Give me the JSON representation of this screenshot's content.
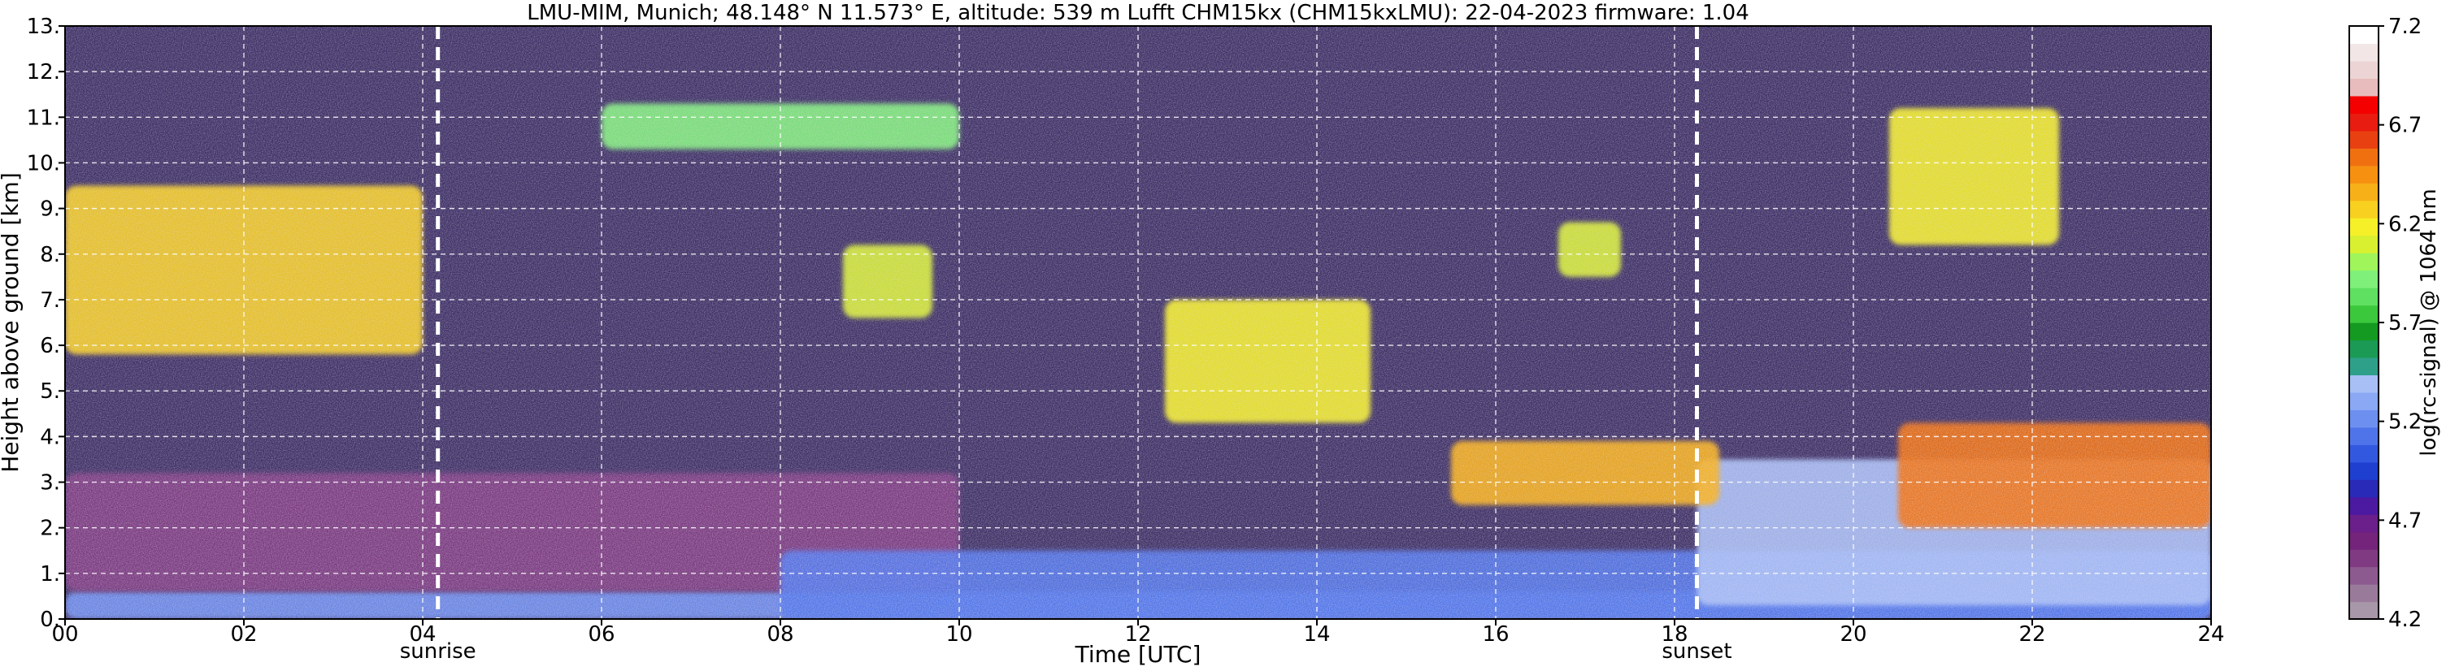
{
  "chart_data": {
    "type": "heatmap",
    "title": "LMU-MIM, Munich; 48.148° N 11.573° E, altitude: 539 m    Lufft CHM15kx (CHM15kxLMU): 22-04-2023    firmware: 1.04",
    "xlabel": "Time [UTC]",
    "ylabel": "Height above ground [km]",
    "xlim": [
      0,
      24
    ],
    "ylim": [
      0,
      13
    ],
    "x_ticks": [
      "00",
      "02",
      "04",
      "06",
      "08",
      "10",
      "12",
      "14",
      "16",
      "18",
      "20",
      "22",
      "24"
    ],
    "x_tick_values": [
      0,
      2,
      4,
      6,
      8,
      10,
      12,
      14,
      16,
      18,
      20,
      22,
      24
    ],
    "y_ticks": [
      "0.",
      "1.",
      "2.",
      "3.",
      "4.",
      "5.",
      "6.",
      "7.",
      "8.",
      "9.",
      "10.",
      "11.",
      "12.",
      "13."
    ],
    "y_tick_values": [
      0,
      1,
      2,
      3,
      4,
      5,
      6,
      7,
      8,
      9,
      10,
      11,
      12,
      13
    ],
    "grid": true,
    "annotations": [
      {
        "label": "sunrise",
        "x": 4.17
      },
      {
        "label": "sunset",
        "x": 18.25
      }
    ],
    "colorbar": {
      "label": "log(rc-signal) @ 1064 nm",
      "range": [
        4.2,
        7.2
      ],
      "ticks": [
        "4.2",
        "4.7",
        "5.2",
        "5.7",
        "6.2",
        "6.7",
        "7.2"
      ],
      "tick_values": [
        4.2,
        4.7,
        5.2,
        5.7,
        6.2,
        6.7,
        7.2
      ],
      "colors": [
        "#a897a8",
        "#9a7a9a",
        "#8c5a8e",
        "#7f3a82",
        "#74247a",
        "#6a1f8a",
        "#4b1aa0",
        "#2a2ab8",
        "#1f3fd0",
        "#3358e0",
        "#4f74ea",
        "#6d8ff0",
        "#8aa8f4",
        "#a8bff6",
        "#2ea08a",
        "#1a9a55",
        "#149a20",
        "#3cc83c",
        "#5fe060",
        "#7ff07a",
        "#9ff55a",
        "#d8f030",
        "#f5f028",
        "#f8d020",
        "#f8b018",
        "#f59010",
        "#f07010",
        "#e84010",
        "#e81c10",
        "#f50000",
        "#e8bcbc",
        "#ecd4d4",
        "#f2e6e6",
        "#ffffff"
      ]
    },
    "layers": [
      {
        "name": "ground-layer",
        "x": [
          0,
          24
        ],
        "y": [
          0,
          0.6
        ],
        "level": 5.2
      },
      {
        "name": "residual-layer",
        "x": [
          0,
          10
        ],
        "y": [
          0.6,
          3.2
        ],
        "level": 4.5
      },
      {
        "name": "boundary-layer-afternoon",
        "x": [
          8,
          24
        ],
        "y": [
          0,
          1.5
        ],
        "level": 5.1
      },
      {
        "name": "evening-boundary-layer",
        "x": [
          18.25,
          24
        ],
        "y": [
          0.3,
          3.5
        ],
        "level": 5.4
      },
      {
        "name": "cloud-night",
        "x": [
          0,
          4
        ],
        "y": [
          5.8,
          9.5
        ],
        "level": 6.3
      },
      {
        "name": "cirrus-1",
        "x": [
          6,
          10
        ],
        "y": [
          10.3,
          11.3
        ],
        "level": 5.9
      },
      {
        "name": "cirrus-2",
        "x": [
          8.7,
          9.7
        ],
        "y": [
          6.6,
          8.2
        ],
        "level": 6.1
      },
      {
        "name": "cirrus-3",
        "x": [
          12.3,
          14.6
        ],
        "y": [
          4.3,
          7.0
        ],
        "level": 6.2
      },
      {
        "name": "cirrus-4",
        "x": [
          16.7,
          17.4
        ],
        "y": [
          7.5,
          8.7
        ],
        "level": 6.1
      },
      {
        "name": "cirrus-5",
        "x": [
          20.4,
          22.3
        ],
        "y": [
          8.2,
          11.2
        ],
        "level": 6.2
      },
      {
        "name": "low-cloud-afternoon",
        "x": [
          15.5,
          18.5
        ],
        "y": [
          2.5,
          3.9
        ],
        "level": 6.4
      },
      {
        "name": "low-cloud-evening",
        "x": [
          20.5,
          24
        ],
        "y": [
          2.0,
          4.3
        ],
        "level": 6.5
      }
    ],
    "noise_background": "night sky dark, daytime speckled"
  }
}
